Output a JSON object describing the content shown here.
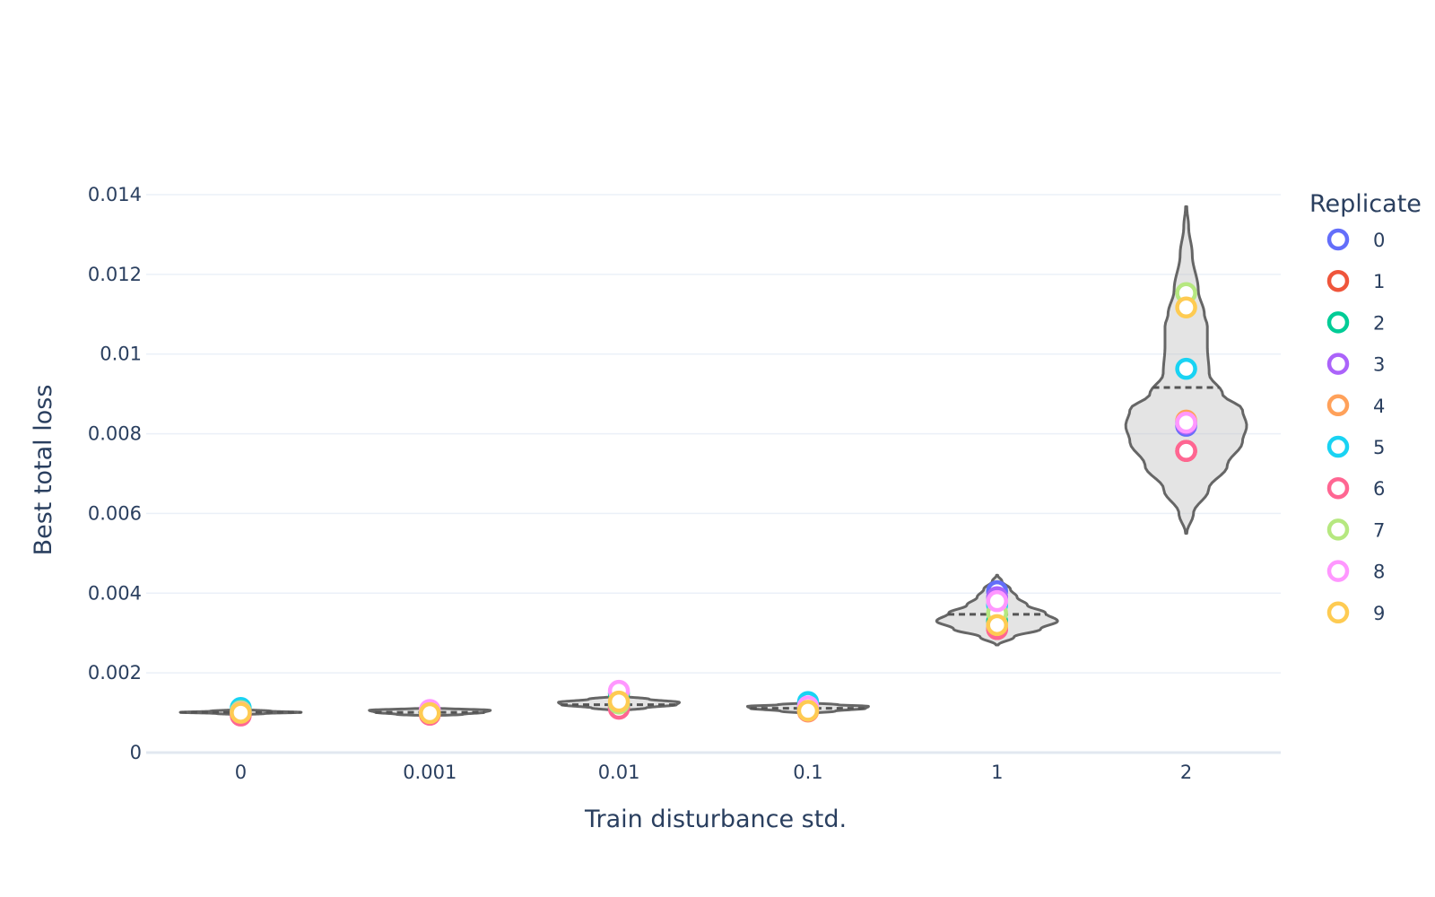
{
  "chart_data": {
    "type": "violin",
    "title": "",
    "xlabel": "Train disturbance std.",
    "ylabel": "Best total loss",
    "ylim": [
      0,
      0.014
    ],
    "yticks": [
      {
        "value": 0,
        "label": "0"
      },
      {
        "value": 0.002,
        "label": "0.002"
      },
      {
        "value": 0.004,
        "label": "0.004"
      },
      {
        "value": 0.006,
        "label": "0.006"
      },
      {
        "value": 0.008,
        "label": "0.008"
      },
      {
        "value": 0.01,
        "label": "0.01"
      },
      {
        "value": 0.012,
        "label": "0.012"
      },
      {
        "value": 0.014,
        "label": "0.014"
      }
    ],
    "grid": true,
    "categories": [
      "0",
      "0.001",
      "0.01",
      "0.1",
      "1",
      "2"
    ],
    "violins": [
      {
        "category": "0",
        "min": 0.00095,
        "max": 0.00108,
        "mean": 0.00101,
        "max_halfwidth": 0.32,
        "profile": [
          [
            0.00095,
            0.05
          ],
          [
            0.00098,
            0.4
          ],
          [
            0.00101,
            1.0
          ],
          [
            0.00104,
            0.5
          ],
          [
            0.00108,
            0.1
          ]
        ]
      },
      {
        "category": "0.001",
        "min": 0.00092,
        "max": 0.00112,
        "mean": 0.00101,
        "max_halfwidth": 0.32,
        "profile": [
          [
            0.00092,
            0.05
          ],
          [
            0.00096,
            0.55
          ],
          [
            0.00101,
            0.9
          ],
          [
            0.00106,
            1.0
          ],
          [
            0.00112,
            0.1
          ]
        ]
      },
      {
        "category": "0.01",
        "min": 0.00105,
        "max": 0.00142,
        "mean": 0.0012,
        "max_halfwidth": 0.32,
        "profile": [
          [
            0.00105,
            0.05
          ],
          [
            0.00112,
            0.45
          ],
          [
            0.0012,
            0.95
          ],
          [
            0.00126,
            1.0
          ],
          [
            0.00134,
            0.5
          ],
          [
            0.00142,
            0.05
          ]
        ]
      },
      {
        "category": "0.1",
        "min": 0.00098,
        "max": 0.00125,
        "mean": 0.00111,
        "max_halfwidth": 0.32,
        "profile": [
          [
            0.00098,
            0.05
          ],
          [
            0.00104,
            0.45
          ],
          [
            0.00111,
            0.95
          ],
          [
            0.00116,
            1.0
          ],
          [
            0.0012,
            0.5
          ],
          [
            0.00125,
            0.05
          ]
        ]
      },
      {
        "category": "1",
        "min": 0.0027,
        "max": 0.00445,
        "mean": 0.00347,
        "max_halfwidth": 0.32,
        "profile": [
          [
            0.0027,
            0.02
          ],
          [
            0.0029,
            0.28
          ],
          [
            0.0031,
            0.72
          ],
          [
            0.0033,
            1.0
          ],
          [
            0.0035,
            0.8
          ],
          [
            0.0037,
            0.5
          ],
          [
            0.0039,
            0.33
          ],
          [
            0.0041,
            0.22
          ],
          [
            0.0043,
            0.08
          ],
          [
            0.00445,
            0.01
          ]
        ]
      },
      {
        "category": "2",
        "min": 0.0055,
        "max": 0.0137,
        "mean": 0.00916,
        "max_halfwidth": 0.32,
        "profile": [
          [
            0.0055,
            0.01
          ],
          [
            0.006,
            0.12
          ],
          [
            0.0066,
            0.37
          ],
          [
            0.0072,
            0.68
          ],
          [
            0.0078,
            0.93
          ],
          [
            0.0082,
            1.0
          ],
          [
            0.0086,
            0.93
          ],
          [
            0.009,
            0.6
          ],
          [
            0.0095,
            0.38
          ],
          [
            0.0102,
            0.35
          ],
          [
            0.0107,
            0.35
          ],
          [
            0.011,
            0.3
          ],
          [
            0.0116,
            0.2
          ],
          [
            0.0125,
            0.1
          ],
          [
            0.0132,
            0.04
          ],
          [
            0.0137,
            0.01
          ]
        ]
      }
    ],
    "series": [
      {
        "name": "0",
        "color": "#636efa",
        "values": [
          0.00101,
          0.001,
          0.00119,
          0.00109,
          0.00405,
          0.0082
        ]
      },
      {
        "name": "1",
        "color": "#ef553b",
        "values": [
          0.001,
          0.00098,
          0.00113,
          0.00107,
          0.0031,
          0.00757
        ]
      },
      {
        "name": "2",
        "color": "#00cc96",
        "values": [
          0.00102,
          0.00101,
          0.00148,
          0.00113,
          0.0033,
          0.0083
        ]
      },
      {
        "name": "3",
        "color": "#ab63fa",
        "values": [
          0.00099,
          0.001,
          0.00121,
          0.0011,
          0.0039,
          0.00825
        ]
      },
      {
        "name": "4",
        "color": "#ffa15a",
        "values": [
          0.00098,
          0.00097,
          0.00116,
          0.00103,
          0.0032,
          0.00833
        ]
      },
      {
        "name": "5",
        "color": "#19d3f3",
        "values": [
          0.00112,
          0.00102,
          0.0012,
          0.00127,
          0.0037,
          0.00963
        ]
      },
      {
        "name": "6",
        "color": "#ff6692",
        "values": [
          0.00093,
          0.00095,
          0.0011,
          0.00104,
          0.0031,
          0.00757
        ]
      },
      {
        "name": "7",
        "color": "#b6e880",
        "values": [
          0.00104,
          0.00101,
          0.00123,
          0.00111,
          0.0035,
          0.01153
        ]
      },
      {
        "name": "8",
        "color": "#ff97ff",
        "values": [
          0.00101,
          0.00107,
          0.00155,
          0.00116,
          0.0038,
          0.00828
        ]
      },
      {
        "name": "9",
        "color": "#fecb52",
        "values": [
          0.001,
          0.00099,
          0.00128,
          0.00105,
          0.0032,
          0.01117
        ]
      }
    ],
    "legend": {
      "title": "Replicate",
      "position": "right"
    }
  }
}
